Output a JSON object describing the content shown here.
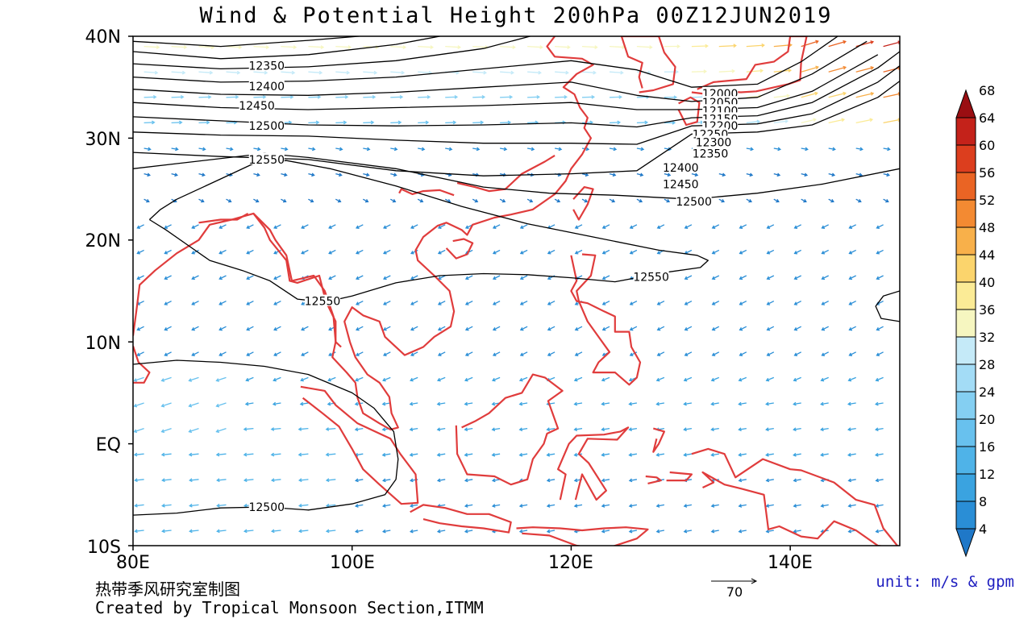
{
  "title": "Wind & Potential Height 200hPa  00Z12JUN2019",
  "map": {
    "lon_ticks": [
      "80E",
      "100E",
      "120E",
      "140E"
    ],
    "lat_ticks": [
      "40N",
      "30N",
      "20N",
      "10N",
      "EQ",
      "10S"
    ],
    "lon_range": [
      80,
      150
    ],
    "lat_range": [
      -10,
      40
    ],
    "coastline_color": "#e03c3c",
    "contour_color": "#000000"
  },
  "contour_labels": [
    {
      "text": "12350",
      "lon": 92.2,
      "lat": 37.1
    },
    {
      "text": "12400",
      "lon": 92.2,
      "lat": 35.1
    },
    {
      "text": "12450",
      "lon": 91.3,
      "lat": 33.2
    },
    {
      "text": "12500",
      "lon": 92.2,
      "lat": 31.2
    },
    {
      "text": "12550",
      "lon": 92.2,
      "lat": 27.9
    },
    {
      "text": "12550",
      "lon": 127.3,
      "lat": 16.4
    },
    {
      "text": "12550",
      "lon": 97.3,
      "lat": 14.0
    },
    {
      "text": "12500",
      "lon": 92.2,
      "lat": -6.2
    },
    {
      "text": "12000",
      "lon": 133.6,
      "lat": 34.4
    },
    {
      "text": "12050",
      "lon": 133.6,
      "lat": 33.5
    },
    {
      "text": "12100",
      "lon": 133.6,
      "lat": 32.7
    },
    {
      "text": "12150",
      "lon": 133.6,
      "lat": 31.9
    },
    {
      "text": "12200",
      "lon": 133.6,
      "lat": 31.2
    },
    {
      "text": "12250",
      "lon": 132.7,
      "lat": 30.4
    },
    {
      "text": "12300",
      "lon": 133.0,
      "lat": 29.6
    },
    {
      "text": "12350",
      "lon": 132.7,
      "lat": 28.5
    },
    {
      "text": "12400",
      "lon": 130.0,
      "lat": 27.1
    },
    {
      "text": "12450",
      "lon": 130.0,
      "lat": 25.5
    },
    {
      "text": "12500",
      "lon": 131.2,
      "lat": 23.8
    }
  ],
  "colorbar": {
    "values": [
      "4",
      "8",
      "12",
      "16",
      "20",
      "24",
      "28",
      "32",
      "36",
      "40",
      "44",
      "48",
      "52",
      "56",
      "60",
      "64",
      "68"
    ],
    "colors": [
      "#1f78c8",
      "#2a8ed6",
      "#3aa3e0",
      "#4fb3e8",
      "#68c1ee",
      "#84cff2",
      "#a3dcf6",
      "#c5eaf8",
      "#f6f6c0",
      "#fbeb96",
      "#fbd46c",
      "#f8b04a",
      "#f38a32",
      "#ea6424",
      "#dc3e1e",
      "#c4221a",
      "#9a0e12"
    ]
  },
  "reference_vector": {
    "label": "70"
  },
  "footer": {
    "chinese": "热带季风研究室制图",
    "credit": "Created by Tropical Monsoon Section,ITMM"
  },
  "unit_text": "unit: m/s & gpm"
}
